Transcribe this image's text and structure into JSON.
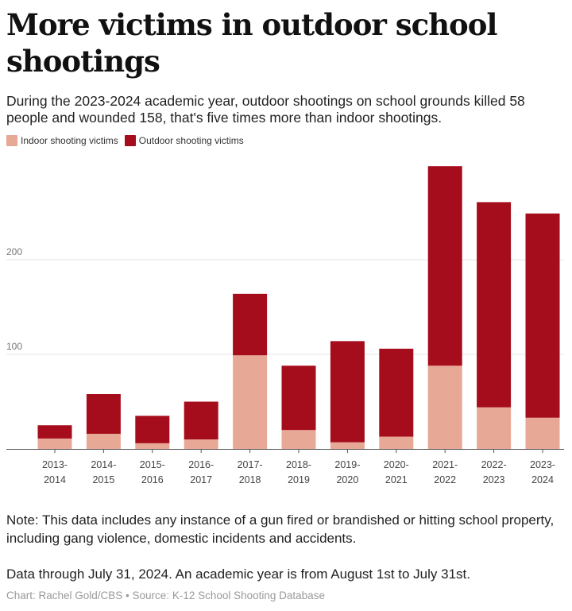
{
  "title": "More victims in outdoor school shootings",
  "subtitle": "During the 2023-2024 academic year, outdoor shootings on school grounds killed 58 people and wounded 158, that's five times more than indoor shootings.",
  "legend": [
    {
      "label": "Indoor shooting victims",
      "color": "#e8a896"
    },
    {
      "label": "Outdoor shooting victims",
      "color": "#a50c1c"
    }
  ],
  "chart_data": {
    "type": "bar",
    "stacked": true,
    "categories": [
      [
        "2013-",
        "2014"
      ],
      [
        "2014-",
        "2015"
      ],
      [
        "2015-",
        "2016"
      ],
      [
        "2016-",
        "2017"
      ],
      [
        "2017-",
        "2018"
      ],
      [
        "2018-",
        "2019"
      ],
      [
        "2019-",
        "2020"
      ],
      [
        "2020-",
        "2021"
      ],
      [
        "2021-",
        "2022"
      ],
      [
        "2022-",
        "2023"
      ],
      [
        "2023-",
        "2024"
      ]
    ],
    "series": [
      {
        "name": "Indoor shooting victims",
        "color": "#e8a896",
        "values": [
          11,
          16,
          6,
          10,
          99,
          20,
          7,
          13,
          88,
          44,
          33
        ]
      },
      {
        "name": "Outdoor shooting victims",
        "color": "#a50c1c",
        "values": [
          14,
          42,
          29,
          40,
          65,
          68,
          107,
          93,
          211,
          217,
          216
        ]
      }
    ],
    "yticks": [
      100,
      200
    ],
    "ylim": [
      0,
      310
    ],
    "grid": true,
    "legend_position": "top-left"
  },
  "note": "Note: This data includes any instance of a gun fired or brandished or hitting school property, including gang violence, domestic incidents and accidents.",
  "data_through": "Data through July 31, 2024. An academic year is from August 1st to July 31st.",
  "credit": "Chart: Rachel Gold/CBS • Source: K-12 School Shooting Database"
}
